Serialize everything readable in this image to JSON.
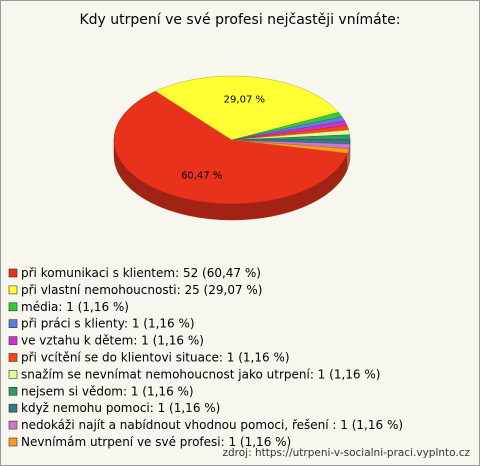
{
  "chart_data": {
    "type": "pie",
    "title": "Kdy utrpení ve své profesi nejčastěji vnímáte:",
    "categories": [
      "při komunikaci s klientem: 52 (60,47 %)",
      "při vlastní nemohoucnosti: 25 (29,07 %)",
      "média: 1 (1,16 %)",
      "při práci s klienty: 1 (1,16 %)",
      "ve vztahu k dětem: 1 (1,16 %)",
      "při vcítění se do klientovi situace: 1 (1,16 %)",
      "snažím se nevnímat nemohoucnost jako utrpení: 1 (1,16 %)",
      "nejsem si vědom: 1 (1,16 %)",
      "když nemohu pomoci: 1 (1,16 %)",
      "nedokáži najít  a nabídnout vhodnou pomoci, řešení : 1 (1,16 %)",
      "Nevnímám utrpení ve své profesi: 1 (1,16 %)"
    ],
    "values": [
      60.47,
      29.07,
      1.16,
      1.16,
      1.16,
      1.16,
      1.16,
      1.16,
      1.16,
      1.16,
      1.16
    ],
    "value_labels": [
      "60,47 %",
      "29,07 %",
      null,
      null,
      null,
      null,
      null,
      null,
      null,
      null,
      null
    ],
    "colors": [
      "#e8321c",
      "#ffff33",
      "#33cc33",
      "#5b7fe0",
      "#cc33cc",
      "#ff4411",
      "#ddff99",
      "#339966",
      "#337788",
      "#cc77cc",
      "#ff9922"
    ],
    "source": "zdroj: https://utrpeni-v-socialni-praci.vyplnto.cz"
  }
}
